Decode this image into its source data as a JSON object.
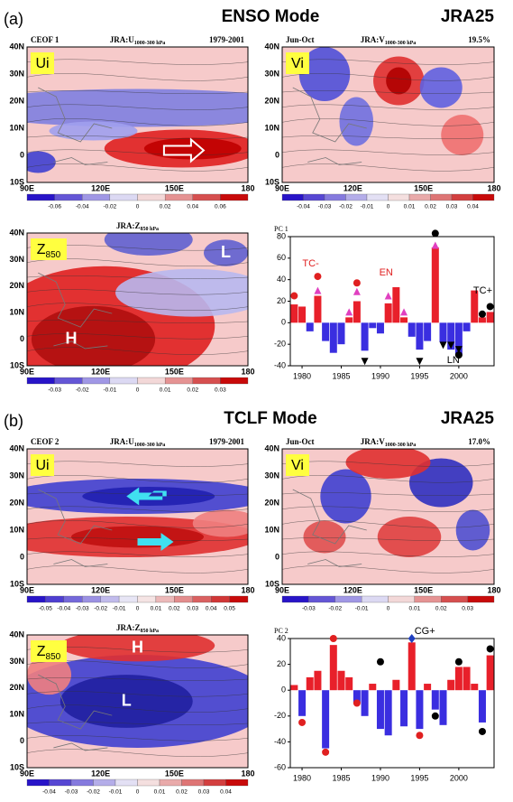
{
  "chart_data": [
    {
      "type": "bar",
      "title": "PC 1",
      "x": [
        1979,
        1980,
        1981,
        1982,
        1983,
        1984,
        1985,
        1986,
        1987,
        1988,
        1989,
        1990,
        1991,
        1992,
        1993,
        1994,
        1995,
        1996,
        1997,
        1998,
        1999,
        2000,
        2001,
        2002,
        2003,
        2004
      ],
      "values": [
        17,
        15,
        -8,
        25,
        -17,
        -28,
        -20,
        5,
        20,
        -26,
        -5,
        -10,
        18,
        33,
        5,
        -13,
        -25,
        -17,
        70,
        -18,
        -25,
        -30,
        -8,
        30,
        5,
        10
      ],
      "positive_color": "#e8202a",
      "negative_color": "#3a2ee0",
      "xlim": [
        1978.5,
        2004.5
      ],
      "ylim": [
        -40,
        80
      ],
      "xticks": [
        1980,
        1985,
        1990,
        1995,
        2000
      ],
      "yticks": [
        -40,
        -20,
        0,
        20,
        40,
        60,
        80
      ],
      "markers": [
        {
          "shape": "circle",
          "color": "#e02020",
          "x": [
            1979,
            1982,
            1987
          ],
          "y": [
            25,
            43,
            37
          ]
        },
        {
          "shape": "triangle-up",
          "color": "#e040c0",
          "x": [
            1982,
            1986,
            1987,
            1991,
            1993,
            1997
          ],
          "y": [
            30,
            10,
            29,
            25,
            10,
            72
          ]
        },
        {
          "shape": "circle",
          "color": "#000000",
          "x": [
            1997,
            2000,
            2003,
            2004
          ],
          "y": [
            83,
            -30,
            8,
            15
          ]
        },
        {
          "shape": "triangle-down",
          "color": "#000000",
          "x": [
            1988,
            1995,
            1998,
            1999,
            2000
          ],
          "y": [
            -36,
            -36,
            -21,
            -21,
            -25
          ]
        }
      ],
      "annotations": [
        "TC-",
        "EN",
        "LN",
        "TC+"
      ]
    },
    {
      "type": "bar",
      "title": "PC 2",
      "x": [
        1979,
        1980,
        1981,
        1982,
        1983,
        1984,
        1985,
        1986,
        1987,
        1988,
        1989,
        1990,
        1991,
        1992,
        1993,
        1994,
        1995,
        1996,
        1997,
        1998,
        1999,
        2000,
        2001,
        2002,
        2003,
        2004
      ],
      "values": [
        4,
        -20,
        10,
        15,
        -45,
        35,
        15,
        10,
        -10,
        -20,
        5,
        -30,
        -35,
        8,
        -28,
        37,
        -30,
        5,
        -15,
        -27,
        8,
        18,
        18,
        5,
        -25,
        27
      ],
      "positive_color": "#e8202a",
      "negative_color": "#3a2ee0",
      "xlim": [
        1978.5,
        2004.5
      ],
      "ylim": [
        -60,
        40
      ],
      "xticks": [
        1980,
        1985,
        1990,
        1995,
        2000
      ],
      "yticks": [
        -60,
        -40,
        -20,
        0,
        20,
        40
      ],
      "markers": [
        {
          "shape": "circle",
          "color": "#e02020",
          "x": [
            1980,
            1983,
            1984,
            1987,
            1995
          ],
          "y": [
            -25,
            -48,
            40,
            -10,
            -35
          ]
        },
        {
          "shape": "circle",
          "color": "#000000",
          "x": [
            1990,
            1997,
            2000,
            2003,
            2004
          ],
          "y": [
            22,
            -20,
            22,
            -32,
            32
          ]
        },
        {
          "shape": "diamond",
          "color": "#2040c0",
          "x": [
            1994
          ],
          "y": [
            40
          ]
        }
      ],
      "annotations": [
        "CG+"
      ]
    }
  ],
  "figure": {
    "lat_labels": [
      "40N",
      "30N",
      "20N",
      "10N",
      "0",
      "10S"
    ],
    "lon_labels": [
      "90E",
      "120E",
      "150E",
      "180"
    ],
    "parts": [
      {
        "letter": "(a)",
        "title": "ENSO Mode",
        "dataset": "JRA25",
        "maps": [
          {
            "left": "CEOF 1",
            "var": {
              "main": "JRA:U",
              "sub": "1000-300 hPa"
            },
            "right": "1979-2001",
            "label": {
              "main": "Ui"
            },
            "colorbar": [
              "-0.06",
              "-0.04",
              "-0.02",
              "0",
              "0.02",
              "0.04",
              "0.06"
            ]
          },
          {
            "left": "Jun-Oct",
            "var": {
              "main": "JRA:V",
              "sub": "1000-300 hPa"
            },
            "right": "19.5%",
            "label": {
              "main": "Vi"
            },
            "colorbar": [
              "-0.04",
              "-0.03",
              "-0.02",
              "-0.01",
              "0",
              "0.01",
              "0.02",
              "0.03",
              "0.04"
            ]
          },
          {
            "var": {
              "main": "JRA:Z",
              "sub": "850 hPa"
            },
            "label": {
              "main": "Z",
              "sub": "850"
            },
            "marks": [
              "L",
              "H"
            ],
            "colorbar": [
              "-0.03",
              "-0.02",
              "-0.01",
              "0",
              "0.01",
              "0.02",
              "0.03"
            ]
          }
        ]
      },
      {
        "letter": "(b)",
        "title": "TCLF Mode",
        "dataset": "JRA25",
        "maps": [
          {
            "left": "CEOF 2",
            "var": {
              "main": "JRA:U",
              "sub": "1000-300 hPa"
            },
            "right": "1979-2001",
            "label": {
              "main": "Ui"
            },
            "colorbar": [
              "-0.05",
              "-0.04",
              "-0.03",
              "-0.02",
              "-0.01",
              "0",
              "0.01",
              "0.02",
              "0.03",
              "0.04",
              "0.05"
            ]
          },
          {
            "left": "Jun-Oct",
            "var": {
              "main": "JRA:V",
              "sub": "1000-300 hPa"
            },
            "right": "17.0%",
            "label": {
              "main": "Vi"
            },
            "colorbar": [
              "-0.03",
              "-0.02",
              "-0.01",
              "0",
              "0.01",
              "0.02",
              "0.03"
            ]
          },
          {
            "var": {
              "main": "JRA:Z",
              "sub": "850 hPa"
            },
            "label": {
              "main": "Z",
              "sub": "850"
            },
            "marks": [
              "H",
              "L"
            ],
            "colorbar": [
              "-0.04",
              "-0.03",
              "-0.02",
              "-0.01",
              "0",
              "0.01",
              "0.02",
              "0.03",
              "0.04"
            ]
          }
        ]
      }
    ]
  }
}
